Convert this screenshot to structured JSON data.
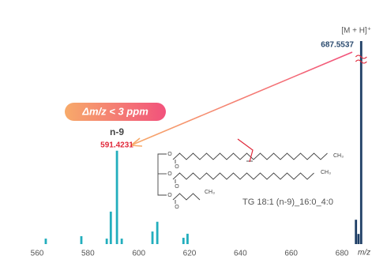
{
  "chart_data": {
    "type": "spectrum",
    "xlabel": "m/z",
    "xlim": [
      553,
      692
    ],
    "xticks": [
      560,
      580,
      600,
      620,
      640,
      660,
      680
    ],
    "ylim": [
      0,
      100
    ],
    "series": [
      {
        "color": "#22aebd",
        "x": [
          563.4,
          577.4,
          587.4,
          589.0,
          591.4231,
          593.3,
          605.4,
          607.3,
          617.6,
          619.2
        ],
        "values": [
          2.7,
          3.9,
          2.7,
          16,
          46,
          2.7,
          6.2,
          11,
          3.1,
          5.1
        ]
      },
      {
        "color": "#1f3f66",
        "x": [
          685.5,
          686.5,
          687.5537
        ],
        "values": [
          12,
          5,
          100
        ]
      }
    ],
    "precursor_label": "[M + H]⁺",
    "fragment_label": "n-9",
    "mass_accuracy": "Δm/z < 3 ppm",
    "compound": "TG 18:1 (n-9)_16:0_4:0",
    "structure": {
      "atoms": [
        "O",
        "O",
        "O",
        "O",
        "O",
        "O",
        "CH₃",
        "CH₃",
        "CH₃"
      ]
    }
  }
}
